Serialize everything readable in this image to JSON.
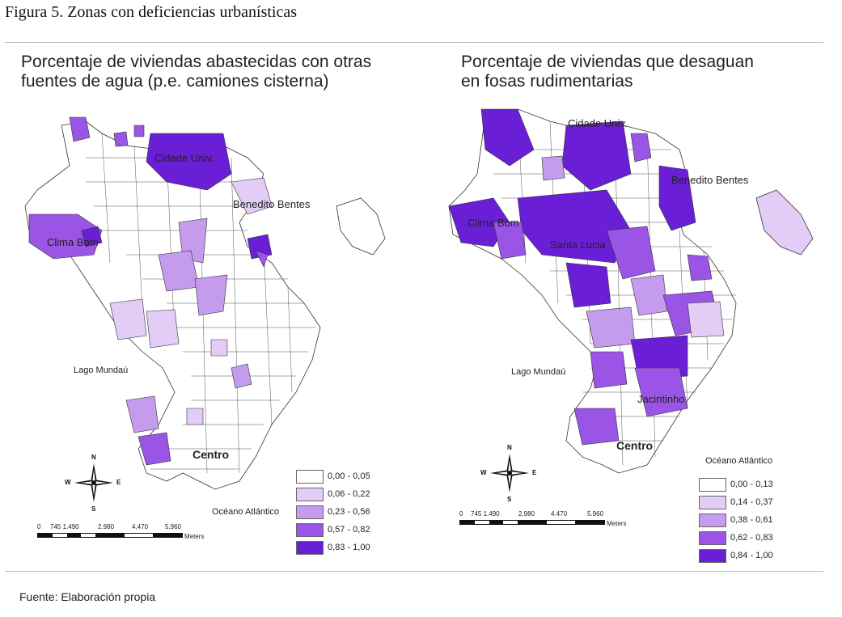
{
  "figure_caption": "Figura 5. Zonas con deficiencias urbanísticas",
  "source": "Fuente: Elaboración propia",
  "colors": {
    "class1": "#ffffff",
    "class2": "#e3cdf7",
    "class3": "#c59bee",
    "class4": "#9a55e6",
    "class5": "#6a1fd6",
    "border": "#333333"
  },
  "left_map": {
    "title": "Porcentaje de viviendas abastecidas con otras\nfuentes de agua (p.e. camiones cisterna)",
    "places": {
      "cidade_univ": "Cidade Univ.",
      "benedito_bentes": "Benedito Bentes",
      "clima_bom": "Clima Bom",
      "lago_mundau": "Lago Mundaú",
      "centro": "Centro",
      "oceano": "Océano Atlántico"
    },
    "legend": [
      {
        "label": "0,00 - 0,05"
      },
      {
        "label": "0,06 - 0,22"
      },
      {
        "label": "0,23 - 0,56"
      },
      {
        "label": "0,57 - 0,82"
      },
      {
        "label": "0,83 - 1,00"
      }
    ],
    "scale": {
      "ticks": [
        "0",
        "745 1.490",
        "2.980",
        "4.470",
        "5.960"
      ],
      "unit": "Meters"
    },
    "compass": {
      "n": "N",
      "s": "S",
      "e": "E",
      "w": "W"
    }
  },
  "right_map": {
    "title": "Porcentaje de viviendas que desaguan\nen fosas rudimentarias",
    "places": {
      "cidade_univ": "Cidade Univ.",
      "benedito_bentes": "Benedito Bentes",
      "clima_bom": "Clima Bom",
      "santa_lucia": "Santa Lucia",
      "lago_mundau": "Lago Mundaú",
      "jacintinho": "Jacintinho",
      "centro": "Centro",
      "oceano": "Océano Atlántico"
    },
    "legend": [
      {
        "label": "0,00 - 0,13"
      },
      {
        "label": "0,14 - 0,37"
      },
      {
        "label": "0,38 - 0,61"
      },
      {
        "label": "0,62 - 0,83"
      },
      {
        "label": "0,84 - 1,00"
      }
    ],
    "scale": {
      "ticks": [
        "0",
        "745 1.490",
        "2.980",
        "4.470",
        "5.960"
      ],
      "unit": "Meters"
    },
    "compass": {
      "n": "N",
      "s": "S",
      "e": "E",
      "w": "W"
    }
  }
}
